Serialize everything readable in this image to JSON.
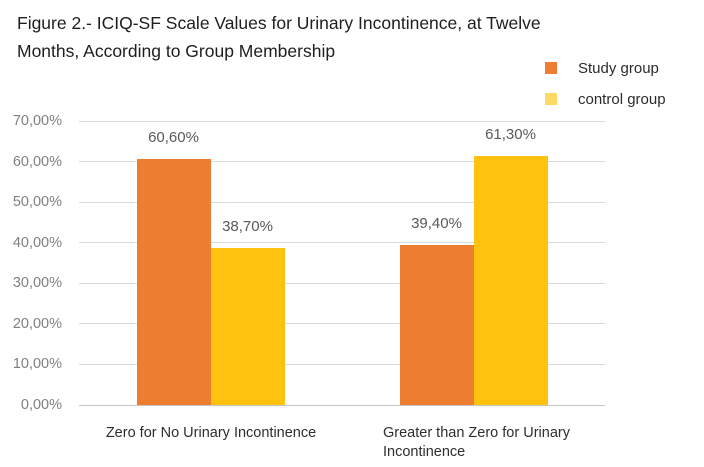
{
  "figure": {
    "title": "Figure 2.- ICIQ-SF Scale Values for Urinary Incontinence, at Twelve Months, According to Group Membership"
  },
  "legend": {
    "items": [
      {
        "label": "Study group",
        "swatch_color": "#ED7D31"
      },
      {
        "label": "control group",
        "swatch_color": "#FFD966"
      }
    ]
  },
  "colors": {
    "study_group_bar": "#ED7D31",
    "control_group_bar": "#FFC20E",
    "gridline": "#D9D9D9",
    "axis_line": "#C6C6C6",
    "tick_text": "#808080",
    "data_label_text": "#595959"
  },
  "chart_data": {
    "type": "bar",
    "title": "Figure 2.- ICIQ-SF Scale Values for Urinary Incontinence, at Twelve Months, According to Group Membership",
    "categories": [
      "Zero for No Urinary Incontinence",
      "Greater than Zero for Urinary Incontinence"
    ],
    "series": [
      {
        "name": "Study group",
        "color": "#ED7D31",
        "values": [
          60.6,
          39.4
        ],
        "data_labels": [
          "60,60%",
          "39,40%"
        ]
      },
      {
        "name": "control group",
        "color": "#FFC20E",
        "values": [
          38.7,
          61.3
        ],
        "data_labels": [
          "38,70%",
          "61,30%"
        ]
      }
    ],
    "xlabel": "",
    "ylabel": "",
    "ylim": [
      0,
      70
    ],
    "grid": true,
    "legend_position": "top-right",
    "y_ticks": [
      {
        "value": 0,
        "label": "0,00%"
      },
      {
        "value": 10,
        "label": "10,00%"
      },
      {
        "value": 20,
        "label": "20,00%"
      },
      {
        "value": 30,
        "label": "30,00%"
      },
      {
        "value": 40,
        "label": "40,00%"
      },
      {
        "value": 50,
        "label": "50,00%"
      },
      {
        "value": 60,
        "label": "60,00%"
      },
      {
        "value": 70,
        "label": "70,00%"
      }
    ]
  }
}
